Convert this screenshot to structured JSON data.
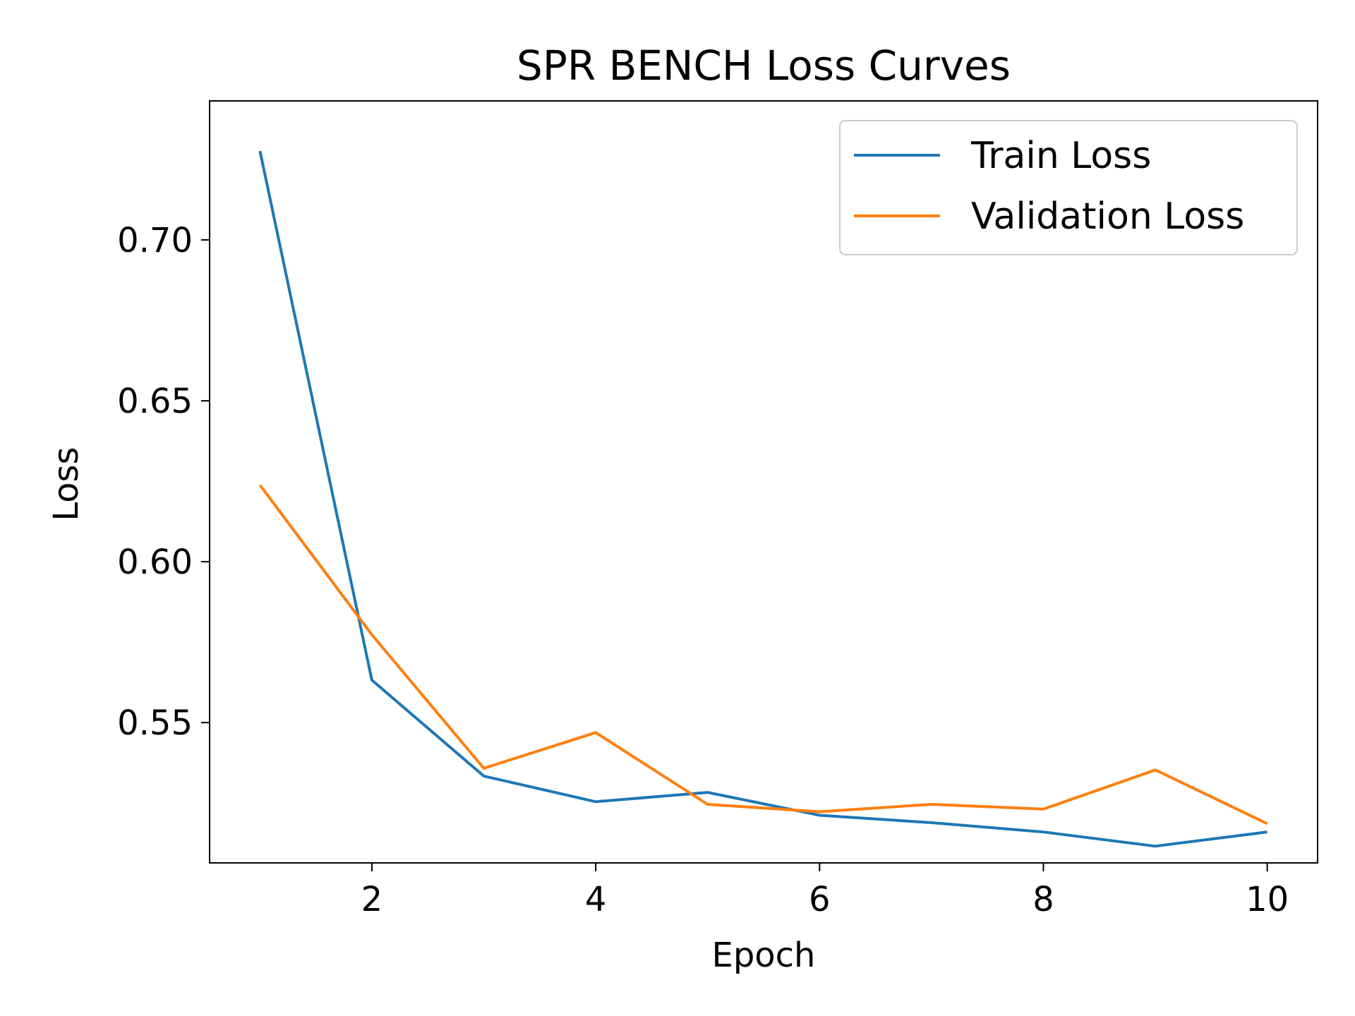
{
  "chart_data": {
    "type": "line",
    "title": "SPR BENCH Loss Curves",
    "xlabel": "Epoch",
    "ylabel": "Loss",
    "x": [
      1,
      2,
      3,
      4,
      5,
      6,
      7,
      8,
      9,
      10
    ],
    "xlim": [
      0.55,
      10.45
    ],
    "ylim": [
      0.5064,
      0.7432
    ],
    "xticks": [
      2,
      4,
      6,
      8,
      10
    ],
    "xtick_labels": [
      "2",
      "4",
      "6",
      "8",
      "10"
    ],
    "yticks": [
      0.55,
      0.6,
      0.65,
      0.7
    ],
    "ytick_labels": [
      "0.55",
      "0.60",
      "0.65",
      "0.70"
    ],
    "grid": false,
    "legend_position": "top-right",
    "series": [
      {
        "name": "Train Loss",
        "color": "#1f77b4",
        "values": [
          0.7276,
          0.5632,
          0.5334,
          0.5254,
          0.5283,
          0.5212,
          0.5189,
          0.516,
          0.5116,
          0.516
        ]
      },
      {
        "name": "Validation Loss",
        "color": "#ff7f0e",
        "values": [
          0.6238,
          0.5773,
          0.5358,
          0.5469,
          0.5246,
          0.5223,
          0.5246,
          0.5231,
          0.5353,
          0.5186
        ]
      }
    ]
  }
}
